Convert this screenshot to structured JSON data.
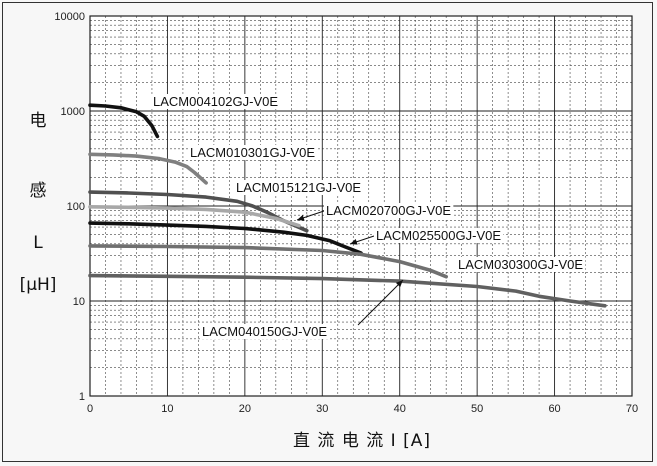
{
  "chart_data": {
    "type": "line",
    "xlabel": "直 流 电 流 I [A]",
    "ylabel_chars": [
      "电",
      "感",
      "L",
      "[μH]"
    ],
    "xlim": [
      0,
      70
    ],
    "ylim": [
      1,
      10000
    ],
    "y_scale": "log",
    "x_ticks": [
      0,
      10,
      20,
      30,
      40,
      50,
      60,
      70
    ],
    "y_ticks": [
      1,
      10,
      100,
      1000,
      10000
    ],
    "grid": true,
    "series": [
      {
        "name": "LACM004102GJ-V0E",
        "color": "#111111",
        "x": [
          0,
          2,
          4,
          6,
          7,
          8,
          8.7
        ],
        "y": [
          1150,
          1130,
          1080,
          980,
          880,
          700,
          540
        ]
      },
      {
        "name": "LACM010301GJ-V0E",
        "color": "#808080",
        "x": [
          0,
          3,
          6,
          9,
          11,
          12.5,
          13.5,
          15
        ],
        "y": [
          350,
          345,
          335,
          315,
          290,
          260,
          225,
          175
        ]
      },
      {
        "name": "LACM015121GJ-V0E",
        "color": "#505050",
        "x": [
          0,
          5,
          10,
          15,
          19,
          21,
          23,
          25,
          28
        ],
        "y": [
          140,
          137,
          132,
          124,
          112,
          100,
          85,
          70,
          55
        ]
      },
      {
        "name": "LACM020700GJ-V0E",
        "color": "#a8a8a8",
        "x": [
          0,
          5,
          10,
          15,
          20,
          24,
          27
        ],
        "y": [
          98,
          97,
          95,
          92,
          86,
          74,
          62
        ]
      },
      {
        "name": "LACM025500GJ-V0E",
        "color": "#111111",
        "x": [
          0,
          5,
          10,
          15,
          20,
          25,
          28,
          31,
          33,
          35
        ],
        "y": [
          66,
          65,
          63,
          61,
          58,
          53,
          49,
          43,
          37,
          32
        ]
      },
      {
        "name": "LACM030300GJ-V0E",
        "color": "#707070",
        "x": [
          0,
          10,
          20,
          30,
          35,
          40,
          44,
          46
        ],
        "y": [
          38,
          37.5,
          36.5,
          34,
          31,
          26,
          21,
          18
        ]
      },
      {
        "name": "LACM040150GJ-V0E",
        "color": "#606060",
        "x": [
          0,
          10,
          20,
          30,
          40,
          50,
          55,
          58,
          62,
          66.5
        ],
        "y": [
          18.5,
          18.2,
          17.8,
          17.2,
          16.2,
          14.2,
          12.7,
          11.2,
          10,
          8.9
        ]
      }
    ],
    "labels": [
      {
        "text": "LACM004102GJ-V0E",
        "series": 0
      },
      {
        "text": "LACM010301GJ-V0E",
        "series": 1
      },
      {
        "text": "LACM015121GJ-V0E",
        "series": 2
      },
      {
        "text": "LACM020700GJ-V0E",
        "series": 3
      },
      {
        "text": "LACM025500GJ-V0E",
        "series": 4
      },
      {
        "text": "LACM030300GJ-V0E",
        "series": 5
      },
      {
        "text": "LACM040150GJ-V0E",
        "series": 6
      }
    ]
  }
}
